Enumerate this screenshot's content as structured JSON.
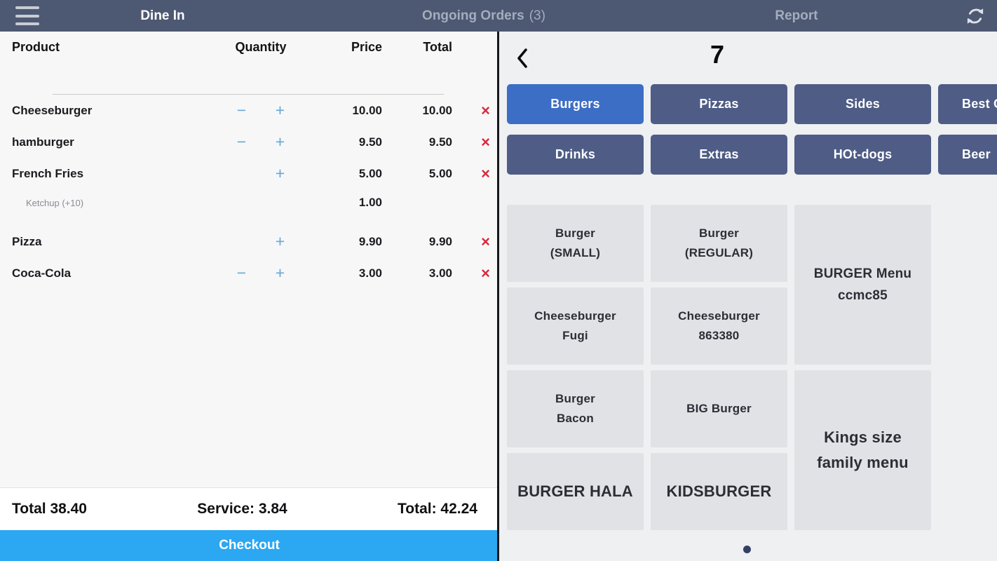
{
  "topbar": {
    "nav": [
      {
        "label": "Dine In",
        "active": true
      },
      {
        "label": "Ongoing Orders",
        "suffix": "(3)",
        "active": false
      },
      {
        "label": "Report",
        "active": false
      }
    ]
  },
  "icons": {
    "minus": "−",
    "plus": "+",
    "remove": "×"
  },
  "order_panel": {
    "header": {
      "product": "Product",
      "quantity": "Quantity",
      "price": "Price",
      "total": "Total"
    },
    "items": [
      {
        "name": "Cheeseburger",
        "minus": true,
        "plus": true,
        "price": "10.00",
        "total": "10.00",
        "modifiers": []
      },
      {
        "name": "hamburger",
        "minus": true,
        "plus": true,
        "price": "9.50",
        "total": "9.50",
        "modifiers": []
      },
      {
        "name": "French Fries",
        "minus": false,
        "plus": true,
        "price": "5.00",
        "total": "5.00",
        "modifiers": [
          {
            "name": "Ketchup (+10)",
            "price": "1.00"
          }
        ]
      },
      {
        "name": "Pizza",
        "minus": false,
        "plus": true,
        "price": "9.90",
        "total": "9.90",
        "modifiers": []
      },
      {
        "name": "Coca-Cola",
        "minus": true,
        "plus": true,
        "price": "3.00",
        "total": "3.00",
        "modifiers": []
      }
    ],
    "summary": {
      "subtotal_label": "Total 38.40",
      "service_label": "Service: 3.84",
      "total_label": "Total: 42.24"
    },
    "checkout_label": "Checkout"
  },
  "catalog": {
    "order_number": "7",
    "categories": [
      {
        "label": "Burgers",
        "active": true
      },
      {
        "label": "Pizzas",
        "active": false
      },
      {
        "label": "Sides",
        "active": false
      },
      {
        "label": "Best O",
        "active": false,
        "clipped": true
      },
      {
        "label": "Drinks",
        "active": false
      },
      {
        "label": "Extras",
        "active": false
      },
      {
        "label": "HOt-dogs",
        "active": false
      },
      {
        "label": "Beer",
        "active": false,
        "clipped": true
      }
    ],
    "products": [
      {
        "label": "Burger\n(SMALL)",
        "col": 1,
        "span": 1,
        "emphasis": "normal"
      },
      {
        "label": "Burger\n(REGULAR)",
        "col": 2,
        "span": 1,
        "emphasis": "normal"
      },
      {
        "label": "BURGER Menu\nccmc85",
        "col": 3,
        "span": 2,
        "emphasis": "md"
      },
      {
        "label": "Cheeseburger\nFugi",
        "col": 1,
        "span": 1,
        "emphasis": "normal"
      },
      {
        "label": "Cheeseburger\n863380",
        "col": 2,
        "span": 1,
        "emphasis": "normal"
      },
      {
        "label": "Burger\nBacon",
        "col": 1,
        "span": 1,
        "emphasis": "normal"
      },
      {
        "label": "BIG Burger",
        "col": 2,
        "span": 1,
        "emphasis": "normal"
      },
      {
        "label": "Kings size\nfamily menu",
        "col": 3,
        "span": 2,
        "emphasis": "large"
      },
      {
        "label": "BURGER HALA",
        "col": 1,
        "span": 1,
        "emphasis": "large"
      },
      {
        "label": "KIDSBURGER",
        "col": 2,
        "span": 1,
        "emphasis": "large"
      }
    ]
  },
  "colors": {
    "topbar_bg": "#4d5972",
    "nav_active": "#ffffff",
    "nav_inactive": "#a4acbe",
    "checkout_blue": "#2ca7f2",
    "qty_blue": "#69a9d3",
    "remove_red": "#d8293c",
    "category_active": "#3d6ec5",
    "category_inactive": "#4e5c86",
    "tile_bg": "#e1e2e6",
    "page_dot": "#333f66"
  }
}
